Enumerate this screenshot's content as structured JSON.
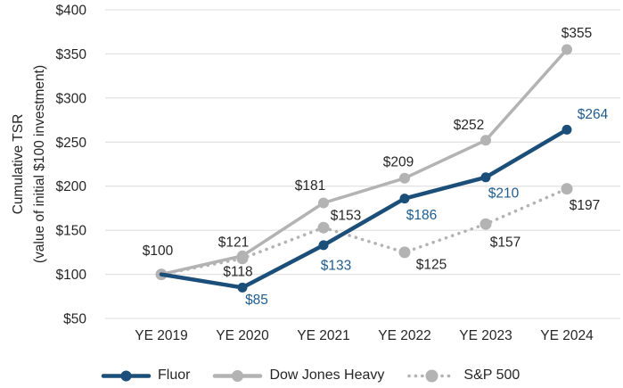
{
  "chart_data": {
    "type": "line",
    "title": "",
    "ylabel_line1": "Cumulative TSR",
    "ylabel_line2": "(value of initial $100 investment)",
    "categories": [
      "YE 2019",
      "YE 2020",
      "YE 2021",
      "YE 2022",
      "YE 2023",
      "YE 2024"
    ],
    "y_ticks": [
      "$400",
      "$350",
      "$300",
      "$250",
      "$200",
      "$150",
      "$100",
      "$50"
    ],
    "y_range": [
      50,
      400
    ],
    "grid": true,
    "legend_position": "bottom",
    "colors": {
      "grid": "#dcdcdc",
      "text": "#262626",
      "fluor_navy": "#1b4e78",
      "fluor_label_blue": "#1f5c8d",
      "index_gray": "#b3b3b3"
    },
    "series": [
      {
        "id": "fluor",
        "name": "Fluor",
        "color": "#1b4e78",
        "style": "solid",
        "line_width": 4.5,
        "marker_r": 5.5,
        "z": 2,
        "marker_skip": [
          0
        ],
        "values": [
          100,
          85,
          133,
          186,
          210,
          264
        ],
        "labels": [
          null,
          "$85",
          "$133",
          "$186",
          "$210",
          "$264"
        ],
        "label_color": "#1f5c8d",
        "label_offsets": [
          [
            0,
            0
          ],
          [
            16,
            13
          ],
          [
            14,
            22
          ],
          [
            19,
            18
          ],
          [
            20,
            17
          ],
          [
            29,
            -18
          ]
        ]
      },
      {
        "id": "dow",
        "name": "Dow Jones Heavy",
        "color": "#b3b3b3",
        "style": "solid",
        "line_width": 3.5,
        "marker_r": 6,
        "z": 0,
        "marker_skip": [],
        "values": [
          100,
          121,
          181,
          209,
          252,
          355
        ],
        "labels": [
          "$100",
          "$121",
          "$181",
          "$209",
          "$252",
          "$355"
        ],
        "label_color": "#262626",
        "label_offsets": [
          [
            -4,
            -27
          ],
          [
            -10,
            -16
          ],
          [
            -15,
            -20
          ],
          [
            -7,
            -19
          ],
          [
            -19,
            -18
          ],
          [
            11,
            -19
          ]
        ]
      },
      {
        "id": "sp500",
        "name": "S&P 500",
        "color": "#b3b3b3",
        "style": "dotted",
        "line_width": 3.6,
        "marker_r": 6.5,
        "z": 1,
        "marker_skip": [],
        "values": [
          100,
          118,
          153,
          125,
          157,
          197
        ],
        "labels": [
          null,
          "$118",
          "$153",
          "$125",
          "$157",
          "$197"
        ],
        "label_color": "#262626",
        "label_offsets": [
          [
            0,
            0
          ],
          [
            -5,
            14
          ],
          [
            25,
            -14
          ],
          [
            30,
            13
          ],
          [
            22,
            20
          ],
          [
            20,
            18
          ]
        ]
      }
    ]
  }
}
